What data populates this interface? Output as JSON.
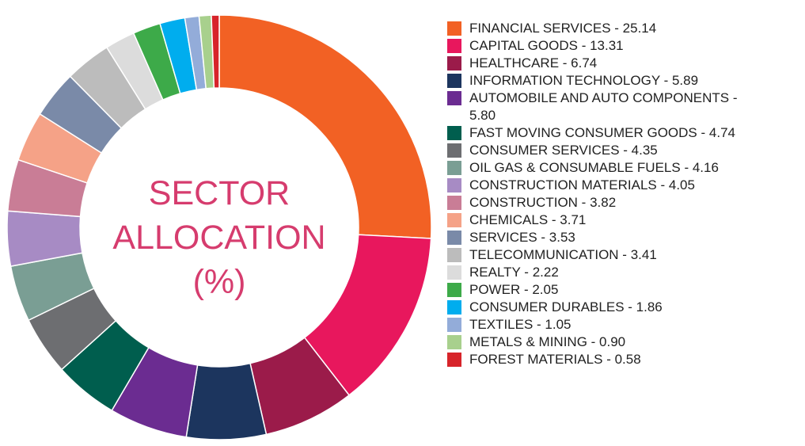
{
  "chart_data": {
    "type": "pie",
    "title": "SECTOR ALLOCATION (%)",
    "legend_separator": " - ",
    "categories": [
      "FINANCIAL SERVICES",
      "CAPITAL GOODS",
      "HEALTHCARE",
      "INFORMATION TECHNOLOGY",
      "AUTOMOBILE AND AUTO COMPONENTS",
      "FAST MOVING CONSUMER GOODS",
      "CONSUMER SERVICES",
      "OIL GAS & CONSUMABLE FUELS",
      "CONSTRUCTION MATERIALS",
      "CONSTRUCTION",
      "CHEMICALS",
      "SERVICES",
      "TELECOMMUNICATION",
      "REALTY",
      "POWER",
      "CONSUMER DURABLES",
      "TEXTILES",
      "METALS & MINING",
      "FOREST MATERIALS"
    ],
    "values": [
      25.14,
      13.31,
      6.74,
      5.89,
      5.8,
      4.74,
      4.35,
      4.16,
      4.05,
      3.82,
      3.71,
      3.53,
      3.41,
      2.22,
      2.05,
      1.86,
      1.05,
      0.9,
      0.58
    ],
    "value_labels": [
      "25.14",
      "13.31",
      "6.74",
      "5.89",
      "5.80",
      "4.74",
      "4.35",
      "4.16",
      "4.05",
      "3.82",
      "3.71",
      "3.53",
      "3.41",
      "2.22",
      "2.05",
      "1.86",
      "1.05",
      "0.90",
      "0.58"
    ],
    "colors": [
      "#f26124",
      "#e8175d",
      "#9b1b4a",
      "#1c355e",
      "#6b2c91",
      "#005e4e",
      "#6d6e71",
      "#7a9e94",
      "#a78bc4",
      "#c97d96",
      "#f5a287",
      "#7a8aa8",
      "#bcbcbc",
      "#dcdcdc",
      "#3daa49",
      "#00adee",
      "#93acd9",
      "#a8d08d",
      "#d7242a"
    ],
    "donut": true
  }
}
